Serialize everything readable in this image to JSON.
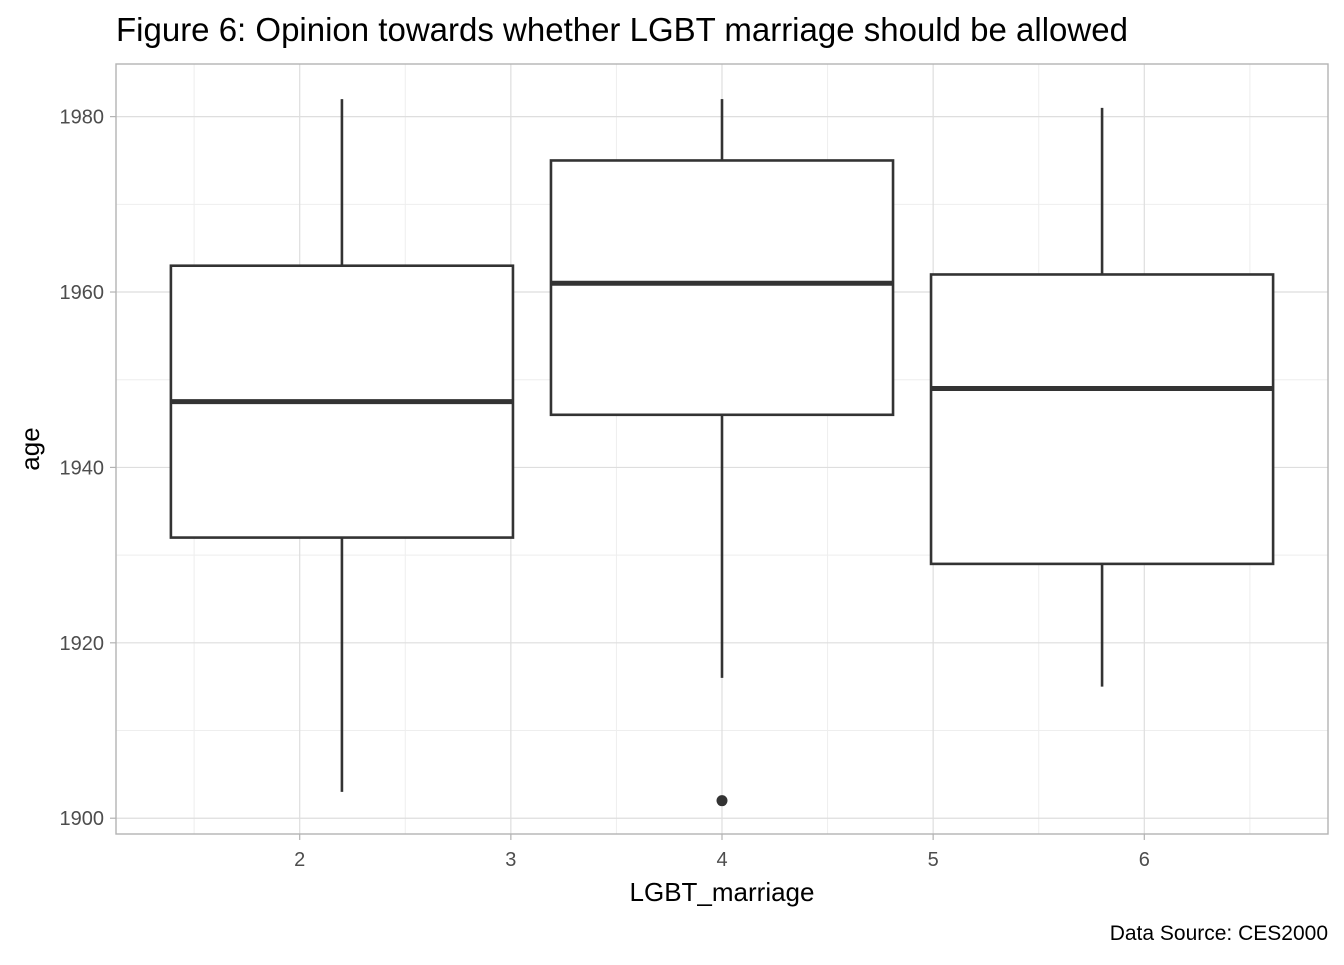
{
  "chart_data": {
    "type": "boxplot",
    "title": "Figure 6: Opinion towards whether LGBT marriage should be allowed",
    "xlabel": "LGBT_marriage",
    "ylabel": "age",
    "caption": "Data Source: CES2000",
    "xlim": [
      1.13,
      6.87
    ],
    "ylim": [
      1898.2,
      1986
    ],
    "x_ticks": [
      2,
      3,
      4,
      5,
      6
    ],
    "x_tick_labels": [
      "2",
      "3",
      "4",
      "5",
      "6"
    ],
    "y_ticks": [
      1900,
      1920,
      1940,
      1960,
      1980
    ],
    "y_tick_labels": [
      "1900",
      "1920",
      "1940",
      "1960",
      "1980"
    ],
    "grid": true,
    "theme": "light",
    "boxes": [
      {
        "x_center": 2.2,
        "x_min": 1.39,
        "x_max": 3.01,
        "whisker_low": 1903,
        "q1": 1932,
        "median": 1947.5,
        "q3": 1963,
        "whisker_high": 1982,
        "outliers": []
      },
      {
        "x_center": 4.0,
        "x_min": 3.19,
        "x_max": 4.81,
        "whisker_low": 1916,
        "q1": 1946,
        "median": 1961,
        "q3": 1975,
        "whisker_high": 1982,
        "outliers": [
          1902
        ]
      },
      {
        "x_center": 5.8,
        "x_min": 4.99,
        "x_max": 6.61,
        "whisker_low": 1915,
        "q1": 1929,
        "median": 1949,
        "q3": 1962,
        "whisker_high": 1981,
        "outliers": []
      }
    ],
    "colors": {
      "box_line": "#333333",
      "box_fill": "#ffffff",
      "grid_major": "#dedede",
      "grid_minor": "#eeeeee",
      "panel_border": "#b3b3b3",
      "tick_text": "#4d4d4d"
    }
  }
}
